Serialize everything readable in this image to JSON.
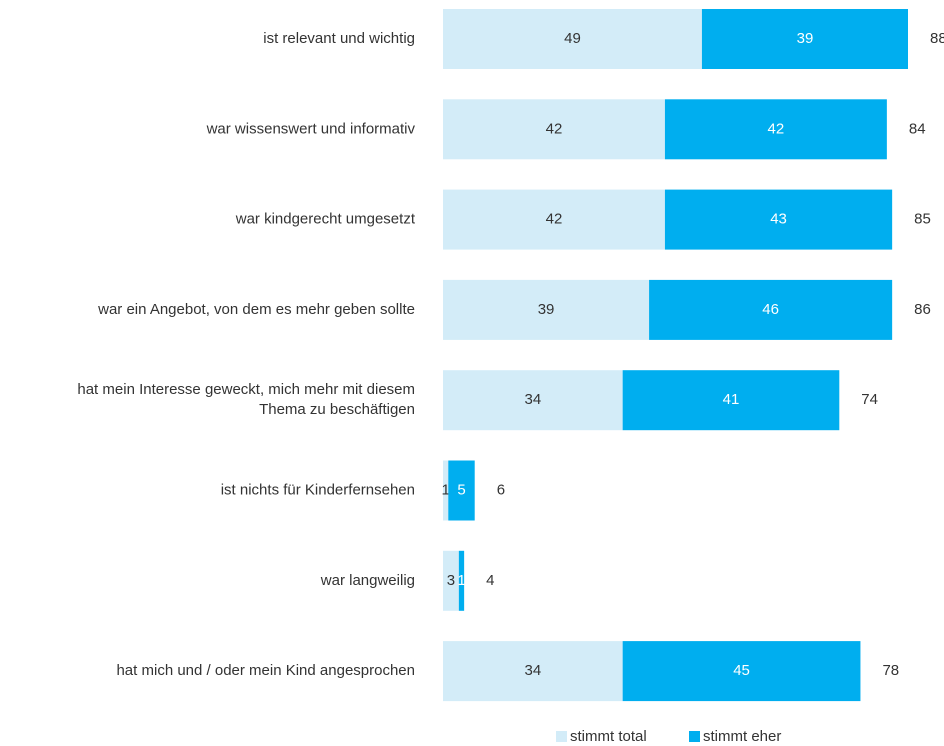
{
  "chart_data": {
    "type": "stacked-bar-horizontal",
    "categories": [
      "ist relevant und wichtig",
      "war wissenswert und informativ",
      "war kindgerecht umgesetzt",
      "war ein Angebot, von dem es mehr geben sollte",
      "hat mein Interesse geweckt, mich mehr mit diesem\nThema zu beschäftigen",
      "ist nichts für Kinderfernsehen",
      "war langweilig",
      "hat mich und / oder mein Kind angesprochen"
    ],
    "series": [
      {
        "name": "stimmt total",
        "color": "#d3ecf8",
        "label_color": "#333333",
        "values": [
          49,
          42,
          42,
          39,
          34,
          1,
          3,
          34
        ]
      },
      {
        "name": "stimmt eher",
        "color": "#00aeef",
        "label_color": "#ffffff",
        "values": [
          39,
          42,
          43,
          46,
          41,
          5,
          1,
          45
        ]
      }
    ],
    "totals": [
      88,
      84,
      85,
      86,
      74,
      6,
      4,
      78
    ]
  }
}
